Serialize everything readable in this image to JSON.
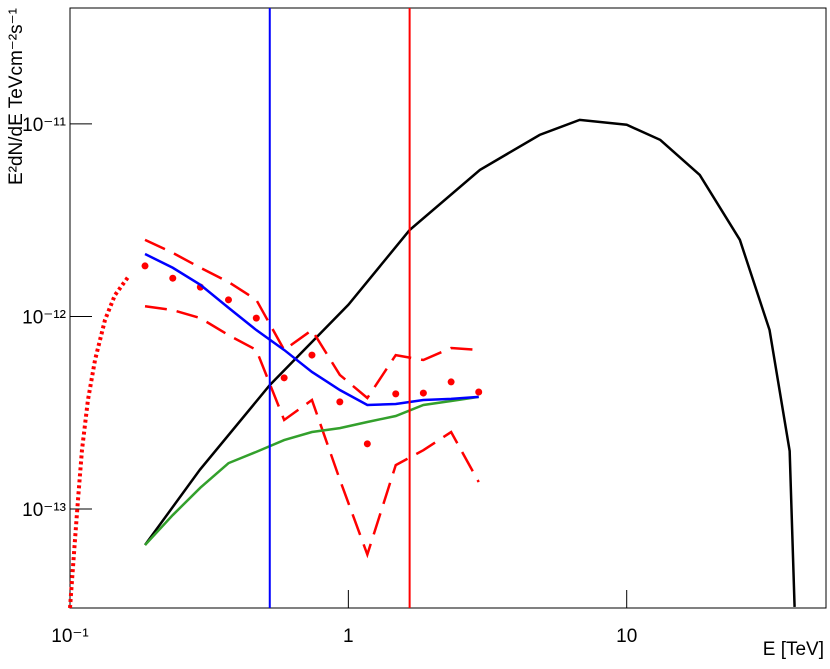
{
  "chart_data": {
    "type": "line",
    "y_label": "E²dN/dE TeVcm⁻²s⁻¹",
    "x_label": "E [TeV]",
    "log_x": true,
    "log_y": true,
    "xlim": [
      0.1,
      52
    ],
    "ylim": [
      3.06e-14,
      4e-11
    ],
    "xticks": [
      {
        "value": 0.1,
        "label": "10⁻¹"
      },
      1,
      10
    ],
    "yticks": [
      {
        "value": 1e-13,
        "label": "10⁻¹³"
      },
      {
        "value": 1e-12,
        "label": "10⁻¹²"
      },
      {
        "value": 1e-11,
        "label": "10⁻¹¹"
      }
    ],
    "series": [
      {
        "color": "#000000",
        "style": "solid",
        "x": [
          0.186,
          0.293,
          0.522,
          1.0,
          1.66,
          2.97,
          4.87,
          6.78,
          10,
          13.2,
          18.3,
          25.5,
          32.6,
          38.5,
          40.1
        ],
        "values": [
          6.5e-14,
          1.6e-13,
          4.4e-13,
          1.15e-12,
          2.81e-12,
          5.77e-12,
          8.77e-12,
          1.05e-11,
          9.9e-12,
          8.26e-12,
          5.43e-12,
          2.5e-12,
          8.5e-13,
          2e-13,
          3.1e-14
        ]
      },
      {
        "color": "#ff0000",
        "style": "dotted",
        "x": [
          0.1,
          0.1017,
          0.1042,
          0.1068,
          0.1104,
          0.116,
          0.123,
          0.1336,
          0.145,
          0.1616
        ],
        "values": [
          3.06e-14,
          4.28e-14,
          6.9e-14,
          1.11e-13,
          2.02e-13,
          3.68e-13,
          5.94e-13,
          9.6e-13,
          1.29e-12,
          1.6e-12
        ]
      },
      {
        "color": "#ff0000",
        "style": "dashed",
        "x": [
          0.186,
          0.234,
          0.294,
          0.371,
          0.467,
          0.588,
          0.74,
          0.932,
          1.17,
          1.48,
          1.86,
          2.34,
          2.94
        ],
        "values": [
          2.5e-12,
          2.14e-12,
          1.79e-12,
          1.51e-12,
          1.22e-12,
          6.7e-13,
          8.5e-13,
          4.97e-13,
          3.77e-13,
          6.3e-13,
          5.94e-13,
          6.86e-13,
          6.7e-13
        ]
      },
      {
        "color": "#ff0000",
        "style": "dashed",
        "x": [
          0.186,
          0.234,
          0.294,
          0.371,
          0.467,
          0.588,
          0.74,
          0.932,
          1.17,
          1.48,
          1.86,
          2.34,
          2.94
        ],
        "values": [
          1.13e-12,
          1.08e-12,
          9.8e-13,
          8e-13,
          6.7e-13,
          2.9e-13,
          3.68e-13,
          1.42e-13,
          5.8e-14,
          1.69e-13,
          2.02e-13,
          2.51e-13,
          1.38e-13
        ]
      },
      {
        "color": "#ff0000",
        "style": "markers",
        "x": [
          0.186,
          0.234,
          0.294,
          0.371,
          0.467,
          0.588,
          0.74,
          0.932,
          1.17,
          1.48,
          1.86,
          2.34,
          2.94
        ],
        "values": [
          1.83e-12,
          1.58e-12,
          1.42e-12,
          1.22e-12,
          9.8e-13,
          4.8e-13,
          6.3e-13,
          3.6e-13,
          2.18e-13,
          3.96e-13,
          4e-13,
          4.57e-13,
          4.05e-13
        ]
      },
      {
        "color": "#33a02c",
        "style": "solid",
        "x": [
          0.186,
          0.234,
          0.294,
          0.371,
          0.467,
          0.588,
          0.74,
          0.932,
          1.17,
          1.48,
          1.86,
          2.34,
          2.94
        ],
        "values": [
          6.5e-14,
          9.3e-14,
          1.29e-13,
          1.73e-13,
          1.98e-13,
          2.28e-13,
          2.51e-13,
          2.63e-13,
          2.83e-13,
          3.04e-13,
          3.47e-13,
          3.64e-13,
          3.82e-13
        ]
      },
      {
        "color": "#0000ff",
        "style": "solid",
        "x": [
          0.186,
          0.234,
          0.294,
          0.371,
          0.467,
          0.588,
          0.74,
          0.932,
          1.17,
          1.48,
          1.86,
          2.34,
          2.94
        ],
        "values": [
          2.11e-12,
          1.79e-12,
          1.46e-12,
          1.11e-12,
          8.5e-13,
          6.7e-13,
          5.15e-13,
          4.15e-13,
          3.47e-13,
          3.51e-13,
          3.68e-13,
          3.73e-13,
          3.82e-13
        ]
      }
    ],
    "vlines": [
      {
        "x": 0.522,
        "color": "#0000ff"
      },
      {
        "x": 1.66,
        "color": "#ff0000"
      }
    ]
  }
}
